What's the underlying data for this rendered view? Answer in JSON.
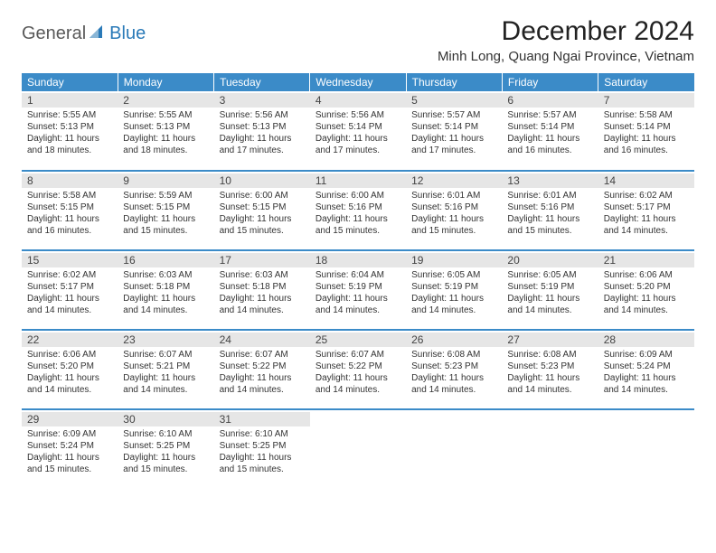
{
  "logo": {
    "word1": "General",
    "word2": "Blue"
  },
  "header": {
    "title": "December 2024",
    "location": "Minh Long, Quang Ngai Province, Vietnam"
  },
  "calendar": {
    "header_bg": "#3b8bc8",
    "header_text": "#ffffff",
    "day_header_bg": "#e6e6e6",
    "border_color": "#3b8bc8",
    "columns": [
      "Sunday",
      "Monday",
      "Tuesday",
      "Wednesday",
      "Thursday",
      "Friday",
      "Saturday"
    ],
    "weeks": [
      [
        {
          "n": "1",
          "sr": "5:55 AM",
          "ss": "5:13 PM",
          "dl": "11 hours and 18 minutes."
        },
        {
          "n": "2",
          "sr": "5:55 AM",
          "ss": "5:13 PM",
          "dl": "11 hours and 18 minutes."
        },
        {
          "n": "3",
          "sr": "5:56 AM",
          "ss": "5:13 PM",
          "dl": "11 hours and 17 minutes."
        },
        {
          "n": "4",
          "sr": "5:56 AM",
          "ss": "5:14 PM",
          "dl": "11 hours and 17 minutes."
        },
        {
          "n": "5",
          "sr": "5:57 AM",
          "ss": "5:14 PM",
          "dl": "11 hours and 17 minutes."
        },
        {
          "n": "6",
          "sr": "5:57 AM",
          "ss": "5:14 PM",
          "dl": "11 hours and 16 minutes."
        },
        {
          "n": "7",
          "sr": "5:58 AM",
          "ss": "5:14 PM",
          "dl": "11 hours and 16 minutes."
        }
      ],
      [
        {
          "n": "8",
          "sr": "5:58 AM",
          "ss": "5:15 PM",
          "dl": "11 hours and 16 minutes."
        },
        {
          "n": "9",
          "sr": "5:59 AM",
          "ss": "5:15 PM",
          "dl": "11 hours and 15 minutes."
        },
        {
          "n": "10",
          "sr": "6:00 AM",
          "ss": "5:15 PM",
          "dl": "11 hours and 15 minutes."
        },
        {
          "n": "11",
          "sr": "6:00 AM",
          "ss": "5:16 PM",
          "dl": "11 hours and 15 minutes."
        },
        {
          "n": "12",
          "sr": "6:01 AM",
          "ss": "5:16 PM",
          "dl": "11 hours and 15 minutes."
        },
        {
          "n": "13",
          "sr": "6:01 AM",
          "ss": "5:16 PM",
          "dl": "11 hours and 15 minutes."
        },
        {
          "n": "14",
          "sr": "6:02 AM",
          "ss": "5:17 PM",
          "dl": "11 hours and 14 minutes."
        }
      ],
      [
        {
          "n": "15",
          "sr": "6:02 AM",
          "ss": "5:17 PM",
          "dl": "11 hours and 14 minutes."
        },
        {
          "n": "16",
          "sr": "6:03 AM",
          "ss": "5:18 PM",
          "dl": "11 hours and 14 minutes."
        },
        {
          "n": "17",
          "sr": "6:03 AM",
          "ss": "5:18 PM",
          "dl": "11 hours and 14 minutes."
        },
        {
          "n": "18",
          "sr": "6:04 AM",
          "ss": "5:19 PM",
          "dl": "11 hours and 14 minutes."
        },
        {
          "n": "19",
          "sr": "6:05 AM",
          "ss": "5:19 PM",
          "dl": "11 hours and 14 minutes."
        },
        {
          "n": "20",
          "sr": "6:05 AM",
          "ss": "5:19 PM",
          "dl": "11 hours and 14 minutes."
        },
        {
          "n": "21",
          "sr": "6:06 AM",
          "ss": "5:20 PM",
          "dl": "11 hours and 14 minutes."
        }
      ],
      [
        {
          "n": "22",
          "sr": "6:06 AM",
          "ss": "5:20 PM",
          "dl": "11 hours and 14 minutes."
        },
        {
          "n": "23",
          "sr": "6:07 AM",
          "ss": "5:21 PM",
          "dl": "11 hours and 14 minutes."
        },
        {
          "n": "24",
          "sr": "6:07 AM",
          "ss": "5:22 PM",
          "dl": "11 hours and 14 minutes."
        },
        {
          "n": "25",
          "sr": "6:07 AM",
          "ss": "5:22 PM",
          "dl": "11 hours and 14 minutes."
        },
        {
          "n": "26",
          "sr": "6:08 AM",
          "ss": "5:23 PM",
          "dl": "11 hours and 14 minutes."
        },
        {
          "n": "27",
          "sr": "6:08 AM",
          "ss": "5:23 PM",
          "dl": "11 hours and 14 minutes."
        },
        {
          "n": "28",
          "sr": "6:09 AM",
          "ss": "5:24 PM",
          "dl": "11 hours and 14 minutes."
        }
      ],
      [
        {
          "n": "29",
          "sr": "6:09 AM",
          "ss": "5:24 PM",
          "dl": "11 hours and 15 minutes."
        },
        {
          "n": "30",
          "sr": "6:10 AM",
          "ss": "5:25 PM",
          "dl": "11 hours and 15 minutes."
        },
        {
          "n": "31",
          "sr": "6:10 AM",
          "ss": "5:25 PM",
          "dl": "11 hours and 15 minutes."
        },
        null,
        null,
        null,
        null
      ]
    ],
    "labels": {
      "sunrise": "Sunrise:",
      "sunset": "Sunset:",
      "daylight": "Daylight:"
    }
  }
}
